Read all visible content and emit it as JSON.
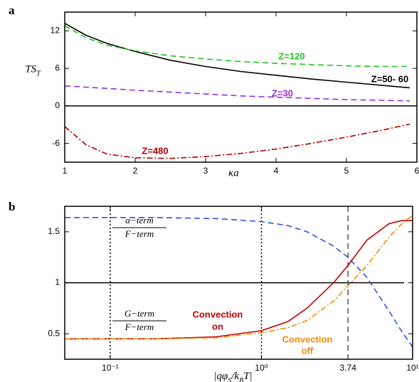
{
  "chart_data": [
    {
      "type": "line",
      "panel": "a",
      "ylabel": [
        "TS",
        "T"
      ],
      "xlabel": "κa",
      "xlim": [
        1,
        6
      ],
      "ylim": [
        -9,
        15
      ],
      "xticks": [
        1,
        2,
        3,
        4,
        5,
        6
      ],
      "yticks": [
        -6,
        0,
        6,
        12
      ],
      "zero_line": true,
      "x": [
        1,
        1.3,
        1.6,
        2,
        2.5,
        3,
        3.5,
        4,
        4.5,
        5,
        5.5,
        5.9
      ],
      "series": [
        {
          "name": "Z=50- 60",
          "color": "#000000",
          "dash": "solid",
          "values": [
            13.2,
            11.3,
            10.0,
            8.7,
            7.3,
            6.3,
            5.5,
            4.9,
            4.3,
            3.8,
            3.3,
            2.9
          ]
        },
        {
          "name": "Z=120",
          "color": "#22c422",
          "dash": "dashed",
          "values": [
            12.8,
            10.9,
            9.7,
            8.8,
            8.0,
            7.5,
            7.1,
            6.8,
            6.6,
            6.4,
            6.3,
            6.3
          ]
        },
        {
          "name": "Z=30",
          "color": "#9030e0",
          "dash": "dashed",
          "values": [
            3.2,
            3.0,
            2.8,
            2.5,
            2.2,
            1.9,
            1.6,
            1.4,
            1.2,
            1.0,
            0.9,
            0.8
          ]
        },
        {
          "name": "Z=480",
          "color": "#b00000",
          "dash": "dashdot",
          "values": [
            -3.3,
            -6.2,
            -7.7,
            -8.3,
            -8.4,
            -8.1,
            -7.6,
            -6.9,
            -6.0,
            -5.0,
            -3.9,
            -2.9
          ]
        }
      ]
    },
    {
      "type": "line",
      "panel": "b",
      "xlabel": [
        "|qφ",
        "S",
        "/k",
        "B",
        "T|"
      ],
      "xscale": "log",
      "xlim": [
        0.05,
        10
      ],
      "ylim": [
        0.25,
        1.75
      ],
      "xticks": [
        {
          "value": 0.1,
          "label": "10⁻¹"
        },
        {
          "value": 1,
          "label": "10⁰"
        },
        3.74,
        {
          "value": 10,
          "label": "10¹"
        }
      ],
      "yticks": [
        0.5,
        1,
        1.5
      ],
      "hline": 1,
      "vlines": [
        {
          "x": 0.1,
          "dash": "dotted"
        },
        {
          "x": 1,
          "dash": "dotted"
        },
        {
          "x": 3.74,
          "dash": "dashed"
        }
      ],
      "x": [
        0.05,
        0.1,
        0.2,
        0.5,
        1,
        1.5,
        2,
        3,
        3.74,
        5,
        7,
        8.5,
        10
      ],
      "series": [
        {
          "color": "#3050e8",
          "dash": "dashed",
          "values": [
            1.64,
            1.64,
            1.64,
            1.63,
            1.6,
            1.56,
            1.5,
            1.36,
            1.25,
            1.05,
            0.72,
            0.52,
            0.37
          ]
        },
        {
          "name": [
            "Convection",
            "on"
          ],
          "color": "#c00000",
          "dash": "solid",
          "values": [
            0.45,
            0.45,
            0.45,
            0.47,
            0.53,
            0.62,
            0.75,
            1.0,
            1.17,
            1.42,
            1.58,
            1.61,
            1.61
          ]
        },
        {
          "name": [
            "Convection",
            "off"
          ],
          "color": "#f08c00",
          "dash": "dashdot",
          "values": [
            0.45,
            0.45,
            0.45,
            0.46,
            0.51,
            0.56,
            0.63,
            0.82,
            0.97,
            1.17,
            1.45,
            1.58,
            1.66
          ]
        }
      ],
      "annotations": [
        {
          "numerator": "α−term",
          "denominator": "F−term"
        },
        {
          "numerator": "G−term",
          "denominator": "F−term"
        }
      ]
    }
  ]
}
